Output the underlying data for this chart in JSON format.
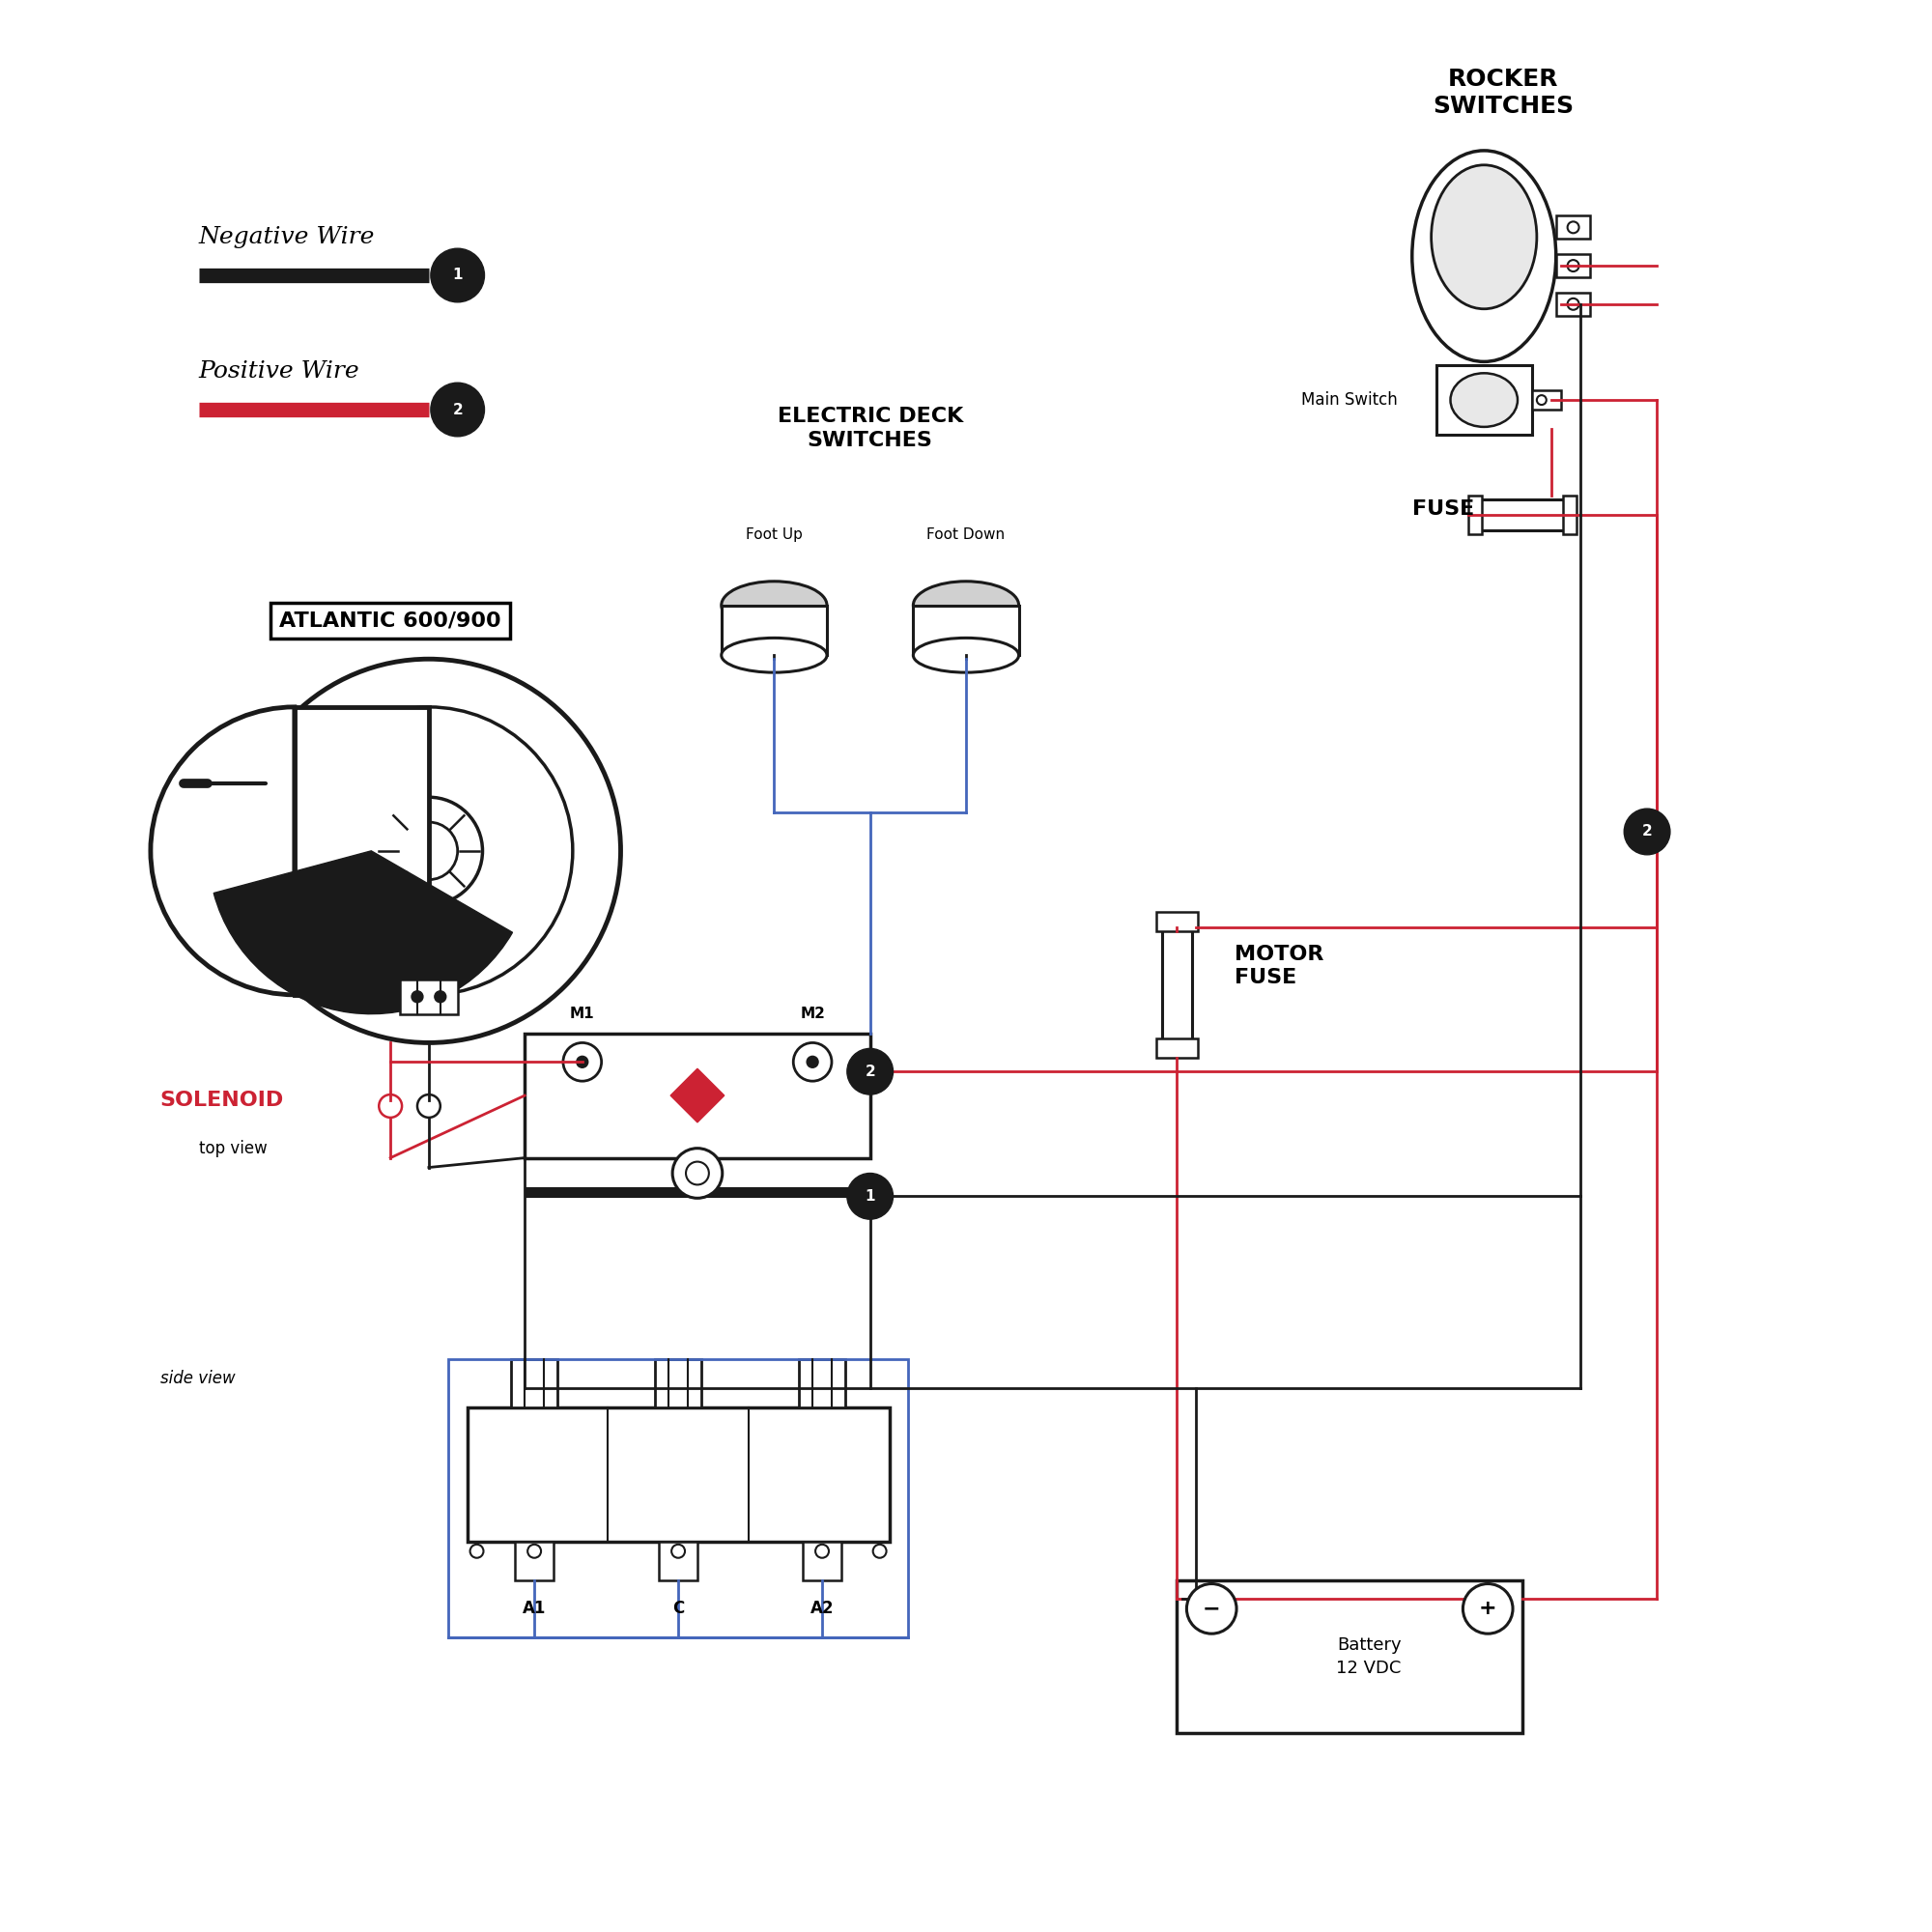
{
  "bg_color": "#ffffff",
  "neg_wire_color": "#1a1a1a",
  "pos_wire_color": "#cc2233",
  "blue_wire_color": "#4466bb",
  "label_neg": "Negative Wire",
  "label_pos": "Positive Wire",
  "label_atlantic": "ATLANTIC 600/900",
  "label_solenoid": "SOLENOID",
  "label_solenoid_sub": "top view",
  "label_side_view": "side view",
  "label_rocker": "ROCKER\nSWITCHES",
  "label_main_switch": "Main Switch",
  "label_fuse": "FUSE",
  "label_motor_fuse": "MOTOR\nFUSE",
  "label_electric_deck": "ELECTRIC DECK\nSWITCHES",
  "label_foot_up": "Foot Up",
  "label_foot_down": "Foot Down",
  "label_battery": "Battery\n12 VDC",
  "label_m1": "M1",
  "label_m2": "M2",
  "label_a1": "A1",
  "label_c": "C",
  "label_a2": "A2",
  "label_2_badge": "2",
  "label_1_badge": "1"
}
